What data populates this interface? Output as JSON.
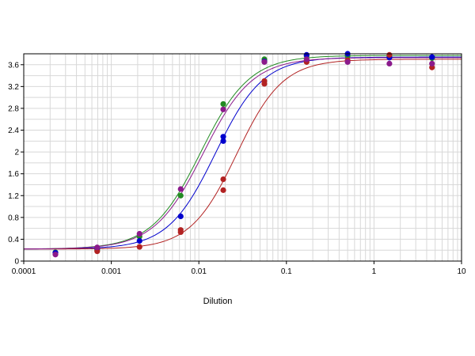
{
  "chart_data": {
    "type": "scatter",
    "title": "",
    "xlabel": "Dilution",
    "ylabel": "",
    "x_scale": "log",
    "xlim": [
      0.0001,
      10
    ],
    "ylim": [
      0,
      3.8
    ],
    "x_ticks": [
      0.0001,
      0.001,
      0.01,
      0.1,
      1,
      10
    ],
    "x_tick_labels": [
      "0.0001",
      "0.001",
      "0.01",
      "0.1",
      "1",
      "10"
    ],
    "y_ticks": [
      0,
      0.4,
      0.8,
      1.2,
      1.6,
      2,
      2.4,
      2.8,
      3.2,
      3.6
    ],
    "y_tick_labels": [
      "0",
      "0.4",
      "0.8",
      "1.2",
      "1.6",
      "2",
      "2.4",
      "2.8",
      "3.2",
      "3.6"
    ],
    "grid": true,
    "legend": "none",
    "series": [
      {
        "color": "#228b22",
        "curve": {
          "bottom": 0.22,
          "top": 3.77,
          "ec50": 0.0105,
          "slope": 1.55
        },
        "points": [
          [
            0.00023,
            0.16
          ],
          [
            0.00069,
            0.2
          ],
          [
            0.0021,
            0.45
          ],
          [
            0.0062,
            1.2
          ],
          [
            0.019,
            2.88
          ],
          [
            0.056,
            3.7
          ],
          [
            0.17,
            3.76
          ],
          [
            0.5,
            3.76
          ],
          [
            1.5,
            3.74
          ],
          [
            4.6,
            3.72
          ]
        ]
      },
      {
        "color": "#0000cd",
        "curve": {
          "bottom": 0.22,
          "top": 3.74,
          "ec50": 0.0155,
          "slope": 1.6
        },
        "points": [
          [
            0.00023,
            0.15
          ],
          [
            0.00069,
            0.23
          ],
          [
            0.0021,
            0.37
          ],
          [
            0.0062,
            0.82
          ],
          [
            0.019,
            2.28
          ],
          [
            0.019,
            2.2
          ],
          [
            0.056,
            3.66
          ],
          [
            0.17,
            3.78
          ],
          [
            0.5,
            3.8
          ],
          [
            1.5,
            3.73
          ],
          [
            4.6,
            3.74
          ]
        ]
      },
      {
        "color": "#b22222",
        "curve": {
          "bottom": 0.22,
          "top": 3.7,
          "ec50": 0.027,
          "slope": 1.65
        },
        "points": [
          [
            0.00069,
            0.18
          ],
          [
            0.0021,
            0.26
          ],
          [
            0.0062,
            0.57
          ],
          [
            0.0062,
            0.53
          ],
          [
            0.019,
            1.5
          ],
          [
            0.019,
            1.3
          ],
          [
            0.056,
            3.3
          ],
          [
            0.056,
            3.25
          ],
          [
            0.17,
            3.65
          ],
          [
            0.5,
            3.68
          ],
          [
            1.5,
            3.78
          ],
          [
            4.6,
            3.55
          ]
        ]
      },
      {
        "color": "#8b1a8b",
        "curve": {
          "bottom": 0.22,
          "top": 3.73,
          "ec50": 0.0112,
          "slope": 1.55
        },
        "points": [
          [
            0.00023,
            0.12
          ],
          [
            0.00069,
            0.25
          ],
          [
            0.0021,
            0.5
          ],
          [
            0.0062,
            1.32
          ],
          [
            0.019,
            2.78
          ],
          [
            0.056,
            3.65
          ],
          [
            0.17,
            3.7
          ],
          [
            0.5,
            3.65
          ],
          [
            1.5,
            3.62
          ],
          [
            4.6,
            3.62
          ]
        ]
      }
    ]
  }
}
